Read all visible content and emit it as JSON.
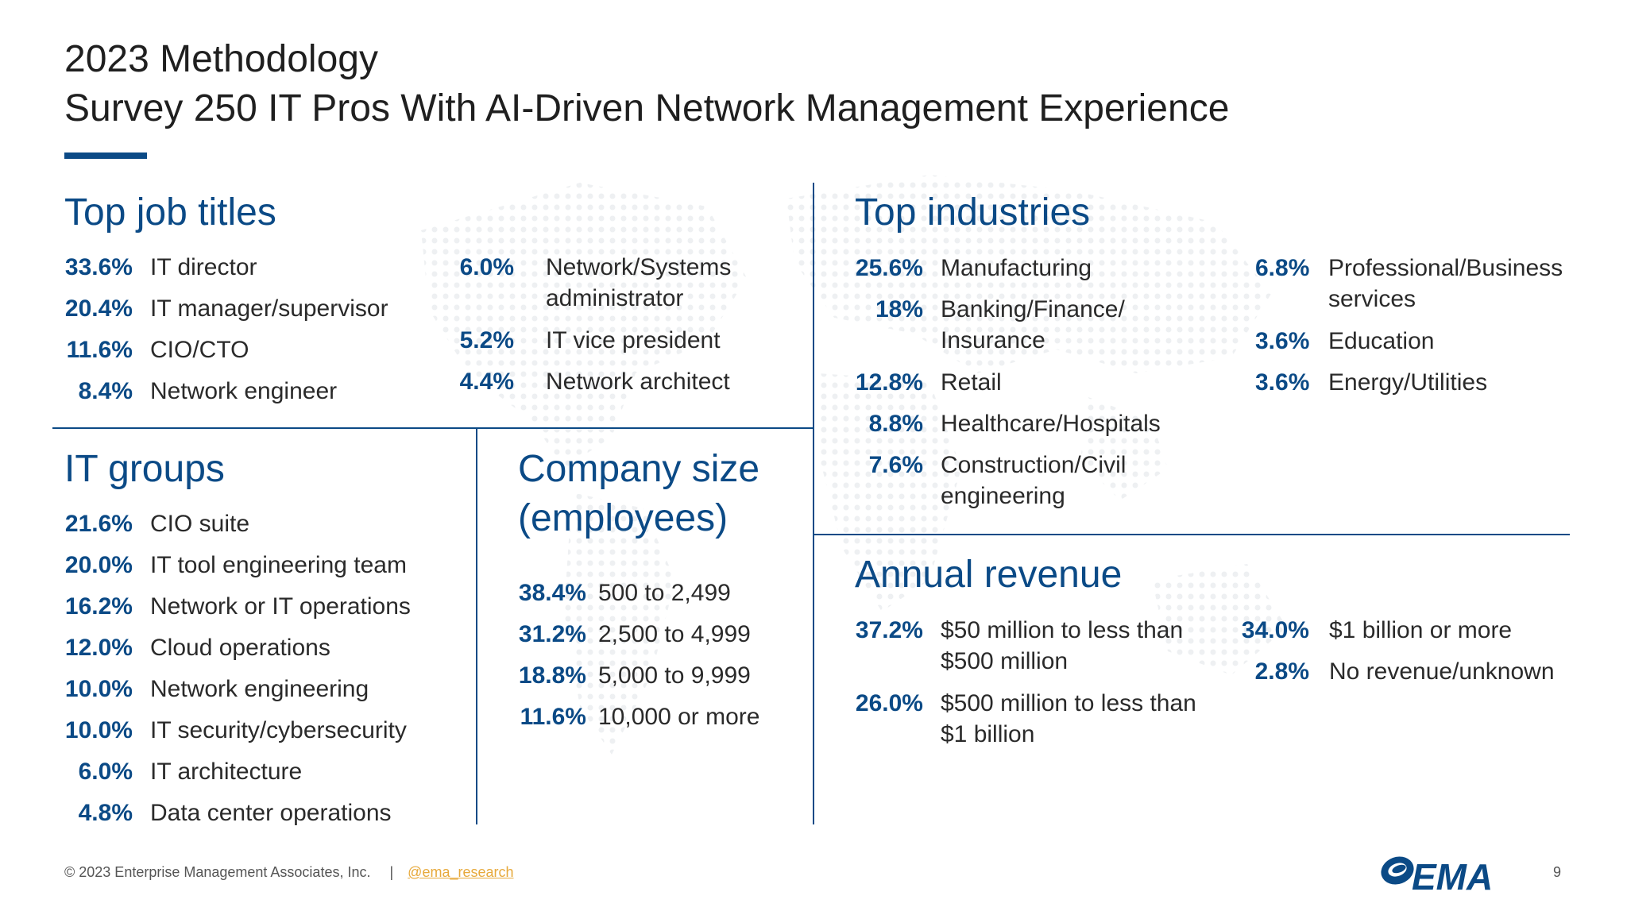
{
  "slide": {
    "title_line1": "2023 Methodology",
    "title_line2": "Survey 250 IT Pros With AI-Driven Network Management Experience"
  },
  "job_titles": {
    "heading": "Top job titles",
    "left": [
      {
        "pct": "33.6%",
        "label": "IT director"
      },
      {
        "pct": "20.4%",
        "label": "IT manager/supervisor"
      },
      {
        "pct": "11.6%",
        "label": "CIO/CTO"
      },
      {
        "pct": "8.4%",
        "label": "Network engineer"
      }
    ],
    "right": [
      {
        "pct": "6.0%",
        "label": "Network/Systems",
        "label2": "administrator"
      },
      {
        "pct": "5.2%",
        "label": "IT vice president"
      },
      {
        "pct": "4.4%",
        "label": "Network architect"
      }
    ]
  },
  "it_groups": {
    "heading": "IT groups",
    "items": [
      {
        "pct": "21.6%",
        "label": "CIO suite"
      },
      {
        "pct": "20.0%",
        "label": "IT tool engineering team"
      },
      {
        "pct": "16.2%",
        "label": "Network or IT operations"
      },
      {
        "pct": "12.0%",
        "label": "Cloud operations"
      },
      {
        "pct": "10.0%",
        "label": "Network engineering"
      },
      {
        "pct": "10.0%",
        "label": "IT security/cybersecurity"
      },
      {
        "pct": "6.0%",
        "label": "IT architecture"
      },
      {
        "pct": "4.8%",
        "label": "Data center operations"
      }
    ]
  },
  "company_size": {
    "heading_line1": "Company size",
    "heading_line2": "(employees)",
    "items": [
      {
        "pct": "38.4%",
        "label": "500 to 2,499"
      },
      {
        "pct": "31.2%",
        "label": "2,500 to 4,999"
      },
      {
        "pct": "18.8%",
        "label": "5,000 to 9,999"
      },
      {
        "pct": "11.6%",
        "label": "10,000 or more"
      }
    ]
  },
  "industries": {
    "heading": "Top industries",
    "left": [
      {
        "pct": "25.6%",
        "label": "Manufacturing"
      },
      {
        "pct": "18%",
        "label": "Banking/Finance/",
        "label2": "Insurance"
      },
      {
        "pct": "12.8%",
        "label": "Retail"
      },
      {
        "pct": "8.8%",
        "label": "Healthcare/Hospitals"
      },
      {
        "pct": "7.6%",
        "label": "Construction/Civil",
        "label2": "engineering"
      }
    ],
    "right": [
      {
        "pct": "6.8%",
        "label": "Professional/Business",
        "label2": "services"
      },
      {
        "pct": "3.6%",
        "label": "Education"
      },
      {
        "pct": "3.6%",
        "label": "Energy/Utilities"
      }
    ]
  },
  "revenue": {
    "heading": "Annual revenue",
    "left": [
      {
        "pct": "37.2%",
        "label": "$50 million to less than",
        "label2": "$500 million"
      },
      {
        "pct": "26.0%",
        "label": "$500 million to less than",
        "label2": "$1 billion"
      }
    ],
    "right": [
      {
        "pct": "34.0%",
        "label": "$1 billion or more"
      },
      {
        "pct": "2.8%",
        "label": "No revenue/unknown"
      }
    ]
  },
  "footer": {
    "copyright": "© 2023 Enterprise Management Associates, Inc.",
    "separator": "|",
    "handle": "@ema_research",
    "logo_text": "EMA",
    "page_number": "9"
  },
  "colors": {
    "accent": "#0b4a86",
    "text": "#2a2a2a",
    "link": "#e7a93b"
  },
  "icons": {
    "background": "world-map-dots-icon",
    "logo": "ema-logo-icon"
  }
}
